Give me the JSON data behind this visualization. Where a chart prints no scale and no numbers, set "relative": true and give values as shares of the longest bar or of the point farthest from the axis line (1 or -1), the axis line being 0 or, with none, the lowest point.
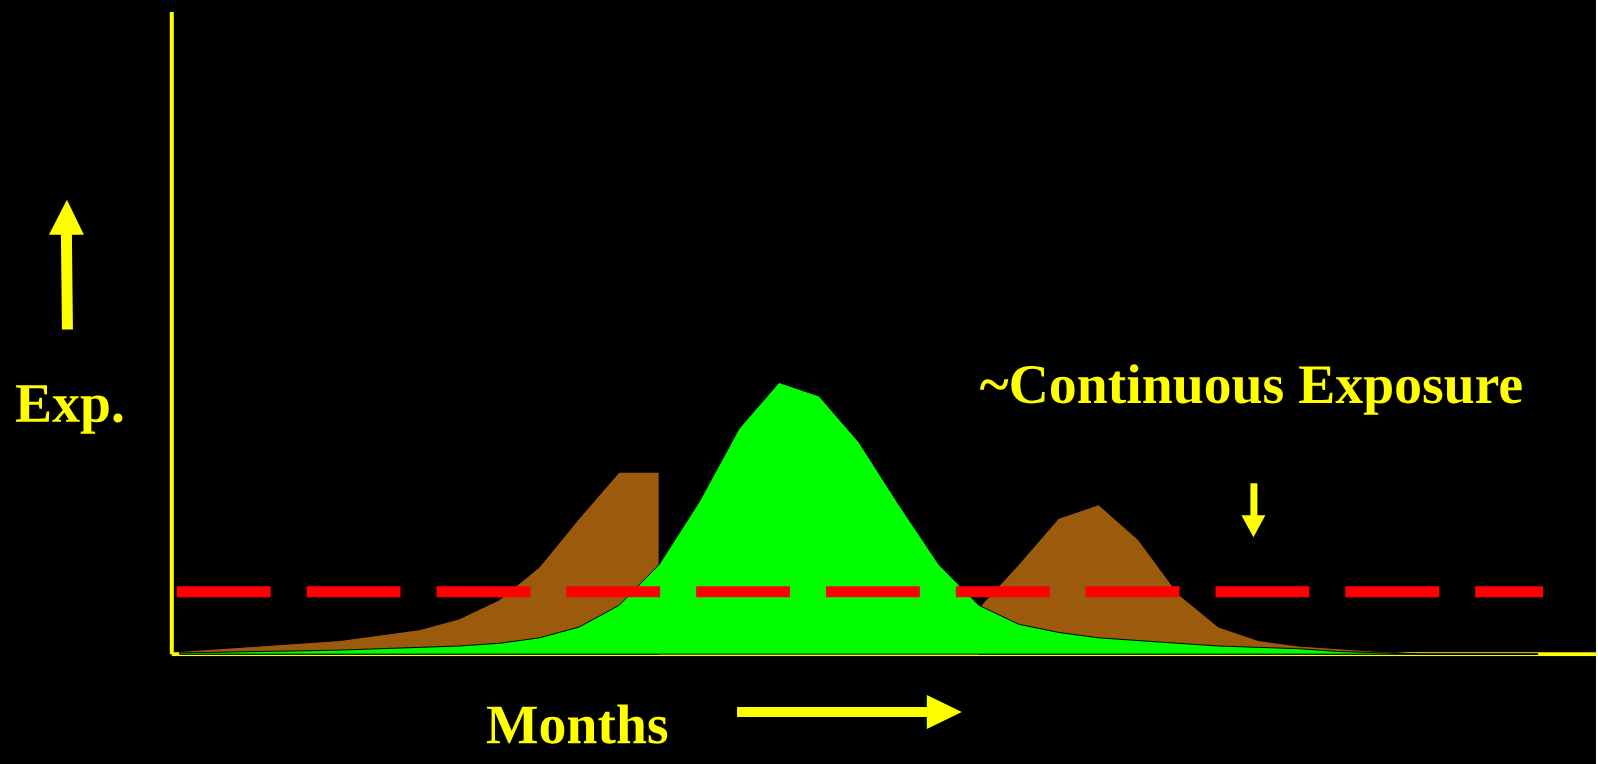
{
  "chart_data": {
    "type": "area",
    "relative": true,
    "xlabel": "Months",
    "ylabel": "Exp.",
    "annotations": [
      "~Continuous Exposure"
    ],
    "categories": [
      null,
      null,
      null,
      null,
      null,
      null,
      null,
      null,
      null,
      null,
      null,
      null,
      null,
      null,
      null,
      null,
      null,
      null,
      null,
      null,
      null,
      null,
      null,
      null,
      null,
      null,
      null,
      null,
      null,
      null,
      null,
      null,
      null,
      null,
      null
    ],
    "series": [
      {
        "color": "#9c5a0c",
        "values": [
          0.01,
          0.02,
          0.03,
          0.04,
          0.05,
          0.07,
          0.09,
          0.13,
          0.2,
          0.32,
          0.5,
          0.67,
          0.67,
          null,
          null,
          null,
          null,
          null,
          null,
          null,
          0.17,
          0.33,
          0.5,
          0.55,
          0.42,
          0.22,
          0.1,
          0.05,
          0.03,
          0.02,
          0.01,
          0,
          0,
          0,
          0
        ]
      },
      {
        "color": "#00ff00",
        "values": [
          0.005,
          0.007,
          0.01,
          0.012,
          0.015,
          0.02,
          0.025,
          0.03,
          0.04,
          0.06,
          0.1,
          0.18,
          0.33,
          0.56,
          0.83,
          1.0,
          0.95,
          0.78,
          0.55,
          0.33,
          0.18,
          0.11,
          0.08,
          0.06,
          0.05,
          0.04,
          0.03,
          0.025,
          0.02,
          0.01,
          0.005,
          0,
          0,
          0,
          0
        ]
      }
    ],
    "ref_lines": [
      {
        "axis": "y",
        "value": 0.23,
        "color": "#ff0000",
        "line_style": "dashed"
      }
    ]
  }
}
